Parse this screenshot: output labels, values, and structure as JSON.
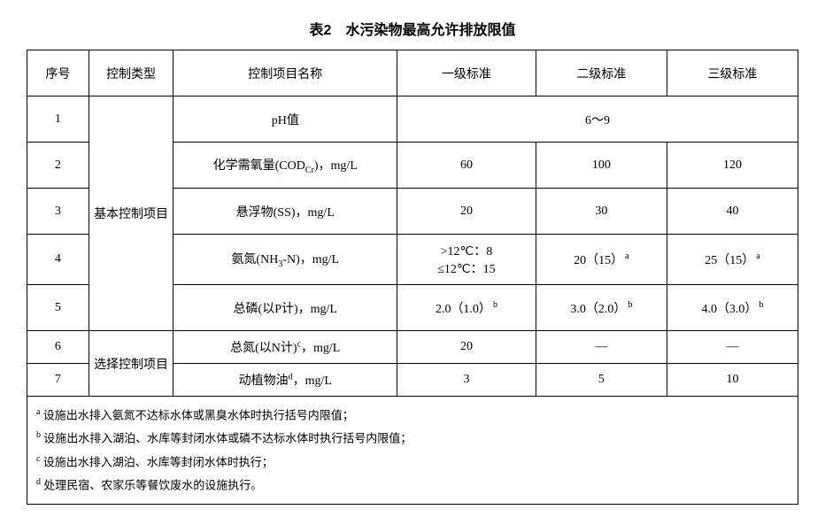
{
  "title": "表2　水污染物最高允许排放限值",
  "headers": {
    "seq": "序号",
    "ctrl_type": "控制类型",
    "item_name": "控制项目名称",
    "std1": "一级标准",
    "std2": "二级标准",
    "std3": "三级标准"
  },
  "ctrl_basic": "基本控制项目",
  "ctrl_select": "选择控制项目",
  "rows": {
    "r1": {
      "n": "1",
      "name": "pH值",
      "merged": "6～9"
    },
    "r2": {
      "n": "2",
      "name_pre": "化学需氧量(COD",
      "name_sub": "Cr",
      "name_post": ")，mg/L",
      "s1": "60",
      "s2": "100",
      "s3": "120"
    },
    "r3": {
      "n": "3",
      "name": "悬浮物(SS)，mg/L",
      "s1": "20",
      "s2": "30",
      "s3": "40"
    },
    "r4": {
      "n": "4",
      "name_pre": "氨氮(NH",
      "name_sub": "3",
      "name_post": "-N)，mg/L",
      "s1a": ">12℃：8",
      "s1b": "≤12℃：15",
      "s2": "20（15）",
      "s3": "25（15）",
      "note": "a"
    },
    "r5": {
      "n": "5",
      "name": "总磷(以P计)，mg/L",
      "s1": "2.0（1.0）",
      "s2": "3.0（2.0）",
      "s3": "4.0（3.0）",
      "note": "b"
    },
    "r6": {
      "n": "6",
      "name_pre": "总氮(以N计)",
      "name_sup": "c",
      "name_post": "，mg/L",
      "s1": "20",
      "s2": "—",
      "s3": "—"
    },
    "r7": {
      "n": "7",
      "name_pre": "动植物油",
      "name_sup": "d",
      "name_post": "，mg/L",
      "s1": "3",
      "s2": "5",
      "s3": "10"
    }
  },
  "notes": {
    "a": {
      "sup": "a",
      "text": " 设施出水排入氨氮不达标水体或黑臭水体时执行括号内限值；"
    },
    "b": {
      "sup": "b",
      "text": " 设施出水排入湖泊、水库等封闭水体或磷不达标水体时执行括号内限值；"
    },
    "c": {
      "sup": "c",
      "text": " 设施出水排入湖泊、水库等封闭水体时执行；"
    },
    "d": {
      "sup": "d",
      "text": " 处理民宿、农家乐等餐饮废水的设施执行。"
    }
  },
  "col_widths": {
    "c1": "8%",
    "c2": "11%",
    "c3": "29%",
    "c4": "18%",
    "c5": "17%",
    "c6": "17%"
  }
}
